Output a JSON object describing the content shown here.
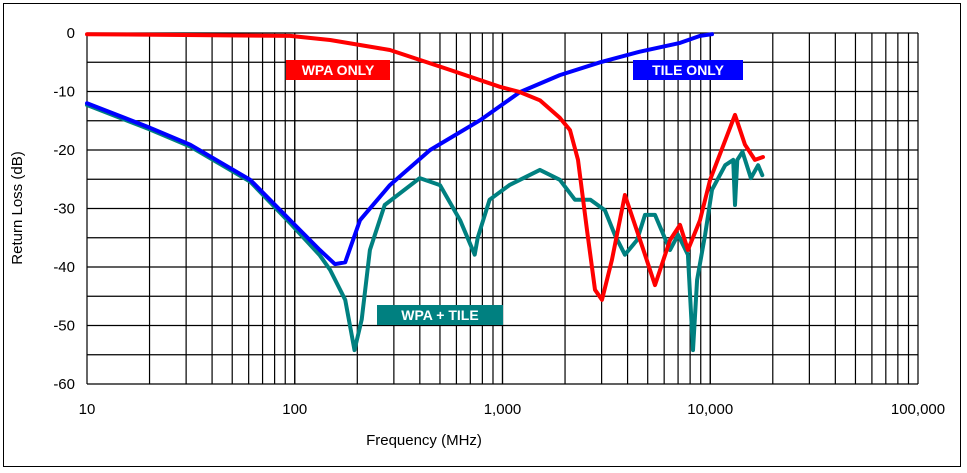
{
  "chart_data": {
    "type": "line",
    "title": "",
    "xlabel": "Frequency (MHz)",
    "ylabel": "Return Loss (dB)",
    "xscale": "log",
    "xlim": [
      10,
      100000
    ],
    "ylim": [
      -60,
      0
    ],
    "grid": true,
    "x_ticks": [
      10,
      100,
      1000,
      10000,
      100000
    ],
    "x_tick_labels": [
      "10",
      "100",
      "1,000",
      "10,000",
      "100,000"
    ],
    "y_ticks": [
      0,
      -10,
      -20,
      -30,
      -40,
      -50,
      -60
    ],
    "y_tick_labels": [
      "0",
      "-10",
      "-20",
      "-30",
      "-40",
      "-50",
      "-60"
    ],
    "legend": "inline labels",
    "series": [
      {
        "name": "WPA ONLY",
        "color": "#ff0000",
        "x": [
          10,
          95,
          148,
          287,
          558,
          972,
          1213,
          1513,
          1888,
          2112,
          2308,
          2551,
          2789,
          3013,
          3363,
          3884,
          4850,
          5418,
          6400,
          7150,
          7810,
          8930,
          9980,
          13150,
          14700,
          16400,
          17950
        ],
        "y": [
          -0.2,
          -0.5,
          -1.2,
          -2.9,
          -6.3,
          -9.2,
          -10.1,
          -11.5,
          -14.5,
          -16.6,
          -21.7,
          -33.7,
          -43.9,
          -45.6,
          -38.8,
          -27.7,
          -37.9,
          -43.1,
          -35.4,
          -32.8,
          -37.1,
          -32.0,
          -25.1,
          -14.0,
          -19.1,
          -21.7,
          -21.2
        ]
      },
      {
        "name": "TILE ONLY",
        "color": "#0000ff",
        "x": [
          10,
          20.1,
          31.4,
          61,
          95,
          132,
          156,
          175,
          206,
          287,
          448,
          780,
          1213,
          1888,
          2950,
          4580,
          7150,
          8930,
          10200
        ],
        "y": [
          -12.0,
          -16.2,
          -19.1,
          -25.1,
          -32.0,
          -37.1,
          -39.5,
          -39.2,
          -32.0,
          -26.0,
          -20.0,
          -14.9,
          -10.1,
          -7.2,
          -5.0,
          -3.2,
          -1.7,
          -0.5,
          -0.2
        ]
      },
      {
        "name": "WPA + TILE",
        "color": "#008080",
        "x": [
          10,
          20.1,
          31.4,
          61,
          95,
          132,
          148,
          175,
          194,
          210,
          230,
          271,
          400,
          500,
          625,
          735,
          760,
          867,
          1080,
          1513,
          1888,
          2230,
          2650,
          3110,
          3470,
          3884,
          4440,
          4850,
          5418,
          6100,
          6400,
          7000,
          7810,
          8260,
          8640,
          9450,
          10200,
          11800,
          12900,
          13150,
          13500,
          14300,
          15700,
          17000,
          17800
        ],
        "y": [
          -12.3,
          -16.5,
          -19.4,
          -25.4,
          -32.5,
          -38.0,
          -40.5,
          -45.6,
          -54.2,
          -49.0,
          -37.1,
          -29.4,
          -24.8,
          -26.0,
          -32.0,
          -37.9,
          -35.0,
          -28.5,
          -26.0,
          -23.4,
          -25.1,
          -28.5,
          -28.5,
          -30.3,
          -34.5,
          -37.9,
          -35.4,
          -31.1,
          -31.1,
          -35.4,
          -37.1,
          -34.5,
          -37.9,
          -54.2,
          -42.2,
          -34.5,
          -26.8,
          -22.6,
          -21.7,
          -29.4,
          -21.7,
          -20.3,
          -24.8,
          -22.6,
          -24.3
        ]
      }
    ]
  }
}
